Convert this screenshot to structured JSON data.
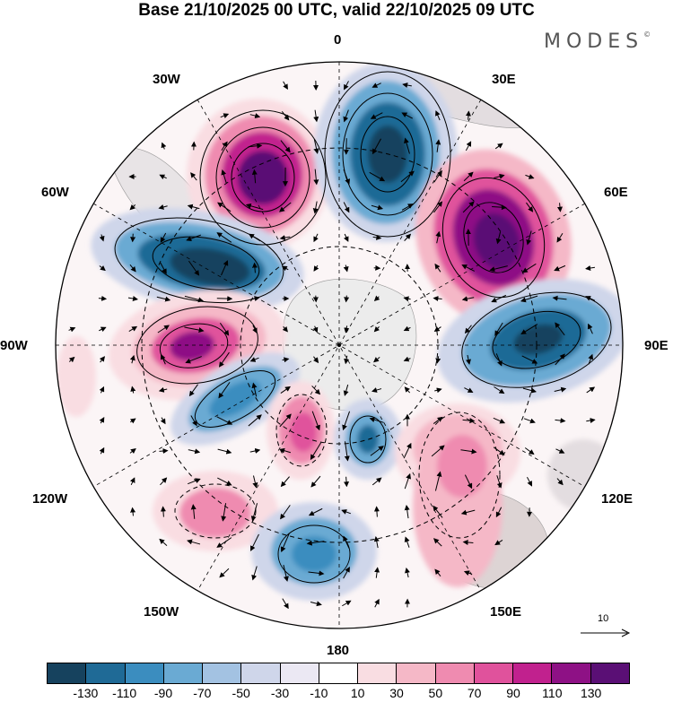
{
  "title": "Base 21/10/2025 00 UTC, valid 22/10/2025 09 UTC",
  "brand": "MODES",
  "brand_mark": "©",
  "meridian_labels": {
    "m0": "0",
    "m30e": "30E",
    "m60e": "60E",
    "m90e": "90E",
    "m120e": "120E",
    "m150e": "150E",
    "m180": "180",
    "m150w": "150W",
    "m120w": "120W",
    "m90w": "90W",
    "m60w": "60W",
    "m30w": "30W"
  },
  "reference_vector": {
    "label": "10"
  },
  "colorbar": {
    "colors": [
      "#16425e",
      "#1f6a96",
      "#3b8dbf",
      "#6aaad3",
      "#a3c2e2",
      "#cfd6ea",
      "#ebe8f3",
      "#ffffff",
      "#f9dde2",
      "#f5b8c7",
      "#ef8bb0",
      "#e0529c",
      "#c1218e",
      "#8e1185",
      "#5a0f75"
    ],
    "ticks": [
      "-130",
      "-110",
      "-90",
      "-70",
      "-50",
      "-30",
      "-10",
      "10",
      "30",
      "50",
      "70",
      "90",
      "110",
      "130"
    ]
  }
}
